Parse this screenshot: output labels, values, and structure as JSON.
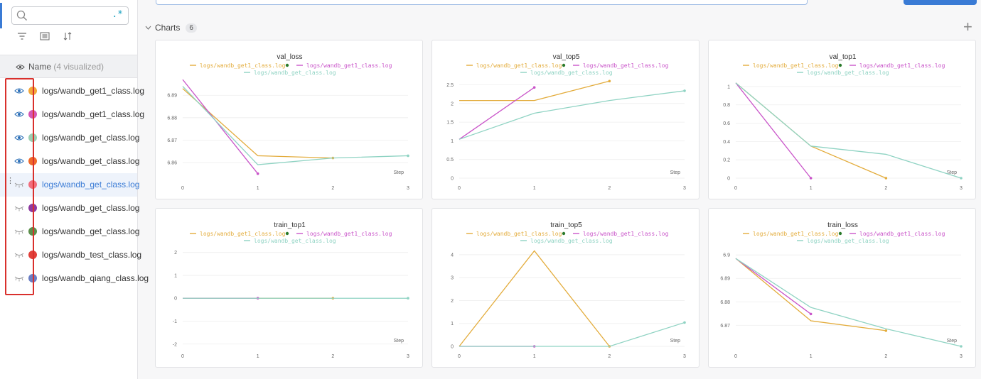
{
  "sidebar": {
    "search": {
      "placeholder": "",
      "regex_icon": ".*"
    },
    "name_header": {
      "label": "Name",
      "sub": "(4 visualized)"
    },
    "runs": [
      {
        "name": "logs/wandb_get1_class.log",
        "color": "#f3a73a",
        "visible": true
      },
      {
        "name": "logs/wandb_get1_class.log",
        "color": "#d655b5",
        "visible": true
      },
      {
        "name": "logs/wandb_get_class.log",
        "color": "#9ccfb2",
        "visible": true
      },
      {
        "name": "logs/wandb_get_class.log",
        "color": "#f0682a",
        "visible": true
      },
      {
        "name": "logs/wandb_get_class.log",
        "color": "#f26e7e",
        "visible": false,
        "selected": true
      },
      {
        "name": "logs/wandb_get_class.log",
        "color": "#8e3aa0",
        "visible": false
      },
      {
        "name": "logs/wandb_get_class.log",
        "color": "#5c8f4b",
        "visible": false
      },
      {
        "name": "logs/wandb_test_class.log",
        "color": "#e2403a",
        "visible": false
      },
      {
        "name": "logs/wandb_qiang_class.log",
        "color": "#6a7ec4",
        "visible": false
      }
    ]
  },
  "section": {
    "title": "Charts",
    "count": "6"
  },
  "legend": {
    "series_a": "logs/wandb_get1_class.log",
    "series_b": "logs/wandb_get1_class.log",
    "series_c": "logs/wandb_get_class.log"
  },
  "colors": {
    "a": "#e3ac3c",
    "b": "#c954c9",
    "c": "#8fd3c3",
    "marker": "#2a7a2a",
    "grid": "#eeeeee"
  },
  "x_label": "Step",
  "chart_data": [
    {
      "type": "line",
      "title": "val_loss",
      "xlabel": "Step",
      "ylabel": "",
      "x": [
        0,
        1,
        2,
        3
      ],
      "xlim": [
        0,
        3
      ],
      "ylim": [
        6.853,
        6.898
      ],
      "yticks": [
        6.86,
        6.87,
        6.88,
        6.89
      ],
      "series": [
        {
          "name": "logs/wandb_get1_class.log",
          "x": [
            0,
            1,
            2
          ],
          "values": [
            6.893,
            6.863,
            6.862
          ]
        },
        {
          "name": "logs/wandb_get1_class.log",
          "x": [
            0,
            1
          ],
          "values": [
            6.897,
            6.855
          ]
        },
        {
          "name": "logs/wandb_get_class.log",
          "x": [
            0,
            1,
            2,
            3
          ],
          "values": [
            6.894,
            6.859,
            6.862,
            6.863
          ]
        }
      ]
    },
    {
      "type": "line",
      "title": "val_top5",
      "xlabel": "Step",
      "ylabel": "",
      "x": [
        0,
        1,
        2,
        3
      ],
      "xlim": [
        0,
        3
      ],
      "ylim": [
        0,
        2.7
      ],
      "yticks": [
        0,
        0.5,
        1,
        1.5,
        2,
        2.5
      ],
      "series": [
        {
          "name": "logs/wandb_get1_class.log",
          "x": [
            0,
            1,
            2
          ],
          "values": [
            2.08,
            2.08,
            2.6
          ]
        },
        {
          "name": "logs/wandb_get1_class.log",
          "x": [
            0,
            1
          ],
          "values": [
            1.04,
            2.43
          ]
        },
        {
          "name": "logs/wandb_get_class.log",
          "x": [
            0,
            1,
            2,
            3
          ],
          "values": [
            1.04,
            1.74,
            2.08,
            2.34
          ]
        }
      ]
    },
    {
      "type": "line",
      "title": "val_top1",
      "xlabel": "Step",
      "ylabel": "",
      "x": [
        0,
        1,
        2,
        3
      ],
      "xlim": [
        0,
        3
      ],
      "ylim": [
        0,
        1.1
      ],
      "yticks": [
        0,
        0.2,
        0.4,
        0.6,
        0.8,
        1
      ],
      "series": [
        {
          "name": "logs/wandb_get1_class.log",
          "x": [
            0,
            1,
            2
          ],
          "values": [
            1.04,
            0.35,
            0
          ]
        },
        {
          "name": "logs/wandb_get1_class.log",
          "x": [
            0,
            1
          ],
          "values": [
            1.04,
            0
          ]
        },
        {
          "name": "logs/wandb_get_class.log",
          "x": [
            0,
            1,
            2,
            3
          ],
          "values": [
            1.04,
            0.35,
            0.26,
            0
          ]
        }
      ]
    },
    {
      "type": "line",
      "title": "train_top1",
      "xlabel": "Step",
      "ylabel": "",
      "x": [
        0,
        1,
        2,
        3
      ],
      "xlim": [
        0,
        3
      ],
      "ylim": [
        -2.1,
        2.3
      ],
      "yticks": [
        -2,
        -1,
        0,
        1,
        2
      ],
      "series": [
        {
          "name": "logs/wandb_get1_class.log",
          "x": [
            0,
            1,
            2
          ],
          "values": [
            0,
            0,
            0
          ]
        },
        {
          "name": "logs/wandb_get1_class.log",
          "x": [
            0,
            1
          ],
          "values": [
            0,
            0
          ]
        },
        {
          "name": "logs/wandb_get_class.log",
          "x": [
            0,
            1,
            2,
            3
          ],
          "values": [
            0,
            0,
            0,
            0
          ]
        }
      ]
    },
    {
      "type": "line",
      "title": "train_top5",
      "xlabel": "Step",
      "ylabel": "",
      "x": [
        0,
        1,
        2,
        3
      ],
      "xlim": [
        0,
        3
      ],
      "ylim": [
        0,
        4.4
      ],
      "yticks": [
        0,
        1,
        2,
        3,
        4
      ],
      "series": [
        {
          "name": "logs/wandb_get1_class.log",
          "x": [
            0,
            1,
            2
          ],
          "values": [
            0,
            4.17,
            0
          ]
        },
        {
          "name": "logs/wandb_get1_class.log",
          "x": [
            0,
            1
          ],
          "values": [
            0,
            0
          ]
        },
        {
          "name": "logs/wandb_get_class.log",
          "x": [
            0,
            1,
            2,
            3
          ],
          "values": [
            0,
            0,
            0,
            1.04
          ]
        }
      ]
    },
    {
      "type": "line",
      "title": "train_loss",
      "xlabel": "Step",
      "ylabel": "",
      "x": [
        0,
        1,
        2,
        3
      ],
      "xlim": [
        0,
        3
      ],
      "ylim": [
        6.861,
        6.904
      ],
      "yticks": [
        6.87,
        6.88,
        6.89,
        6.9
      ],
      "series": [
        {
          "name": "logs/wandb_get1_class.log",
          "x": [
            0,
            1,
            2
          ],
          "values": [
            6.8985,
            6.8719,
            6.8677
          ]
        },
        {
          "name": "logs/wandb_get1_class.log",
          "x": [
            0,
            1
          ],
          "values": [
            6.8985,
            6.8748
          ]
        },
        {
          "name": "logs/wandb_get_class.log",
          "x": [
            0,
            1,
            2,
            3
          ],
          "values": [
            6.8985,
            6.8776,
            6.8685,
            6.861
          ]
        }
      ]
    }
  ]
}
